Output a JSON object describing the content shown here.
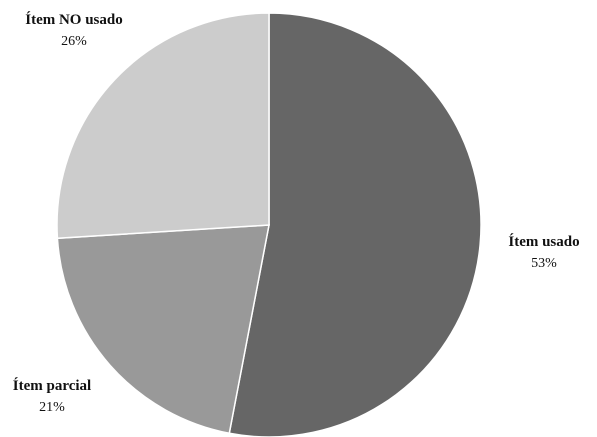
{
  "chart_data": {
    "type": "pie",
    "title": "",
    "categories": [
      "Ítem usado",
      "Ítem parcial",
      "Ítem NO usado"
    ],
    "values": [
      53,
      21,
      26
    ],
    "labels": [
      "53%",
      "21%",
      "26%"
    ],
    "colors": [
      "#666666",
      "#999999",
      "#cccccc"
    ],
    "start_angle_deg": 0,
    "direction": "clockwise",
    "legend": "none"
  }
}
